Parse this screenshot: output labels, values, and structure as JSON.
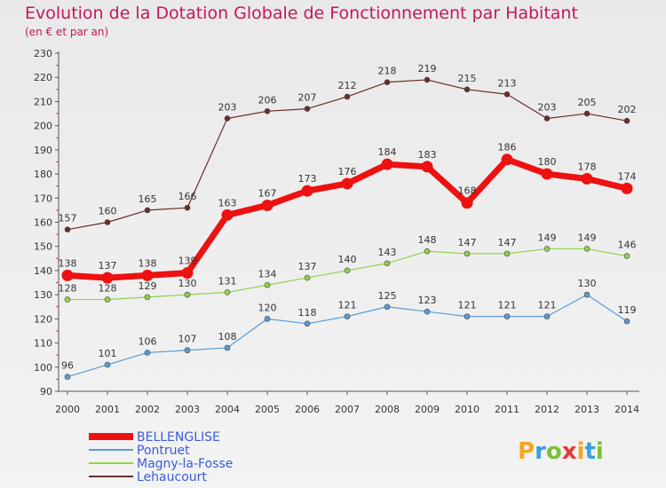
{
  "title": "Evolution de la Dotation Globale de Fonctionnement par Habitant",
  "subtitle": "(en € et par an)",
  "logo": {
    "text": "Proxiti",
    "colors": [
      "#f5a623",
      "#3aa0d8",
      "#7cbf3a",
      "#e53935"
    ]
  },
  "chart_data": {
    "type": "line",
    "title": "Evolution de la Dotation Globale de Fonctionnement par Habitant",
    "ylabel": "(en € et par an)",
    "xlabel": "",
    "ylim": [
      90,
      230
    ],
    "yticks": [
      90,
      100,
      110,
      120,
      130,
      140,
      150,
      160,
      170,
      180,
      190,
      200,
      210,
      220,
      230
    ],
    "categories": [
      "2000",
      "2001",
      "2002",
      "2003",
      "2004",
      "2005",
      "2006",
      "2007",
      "2008",
      "2009",
      "2010",
      "2011",
      "2012",
      "2013",
      "2014"
    ],
    "series": [
      {
        "name": "BELLENGLISE",
        "color": "#ee1111",
        "values": [
          138,
          137,
          138,
          139,
          163,
          167,
          173,
          176,
          184,
          183,
          168,
          186,
          180,
          178,
          174
        ]
      },
      {
        "name": "Pontruet",
        "color": "#5b9bd5",
        "values": [
          96,
          101,
          106,
          107,
          108,
          120,
          118,
          121,
          125,
          123,
          121,
          121,
          121,
          130,
          119
        ]
      },
      {
        "name": "Magny-la-Fosse",
        "color": "#92d050",
        "values": [
          128,
          128,
          129,
          130,
          131,
          134,
          137,
          140,
          143,
          148,
          147,
          147,
          149,
          149,
          146
        ]
      },
      {
        "name": "Lehaucourt",
        "color": "#6b2c2c",
        "values": [
          157,
          160,
          165,
          166,
          203,
          206,
          207,
          212,
          218,
          219,
          215,
          213,
          203,
          205,
          202
        ]
      }
    ],
    "legend_position": "bottom-left",
    "grid": false
  }
}
